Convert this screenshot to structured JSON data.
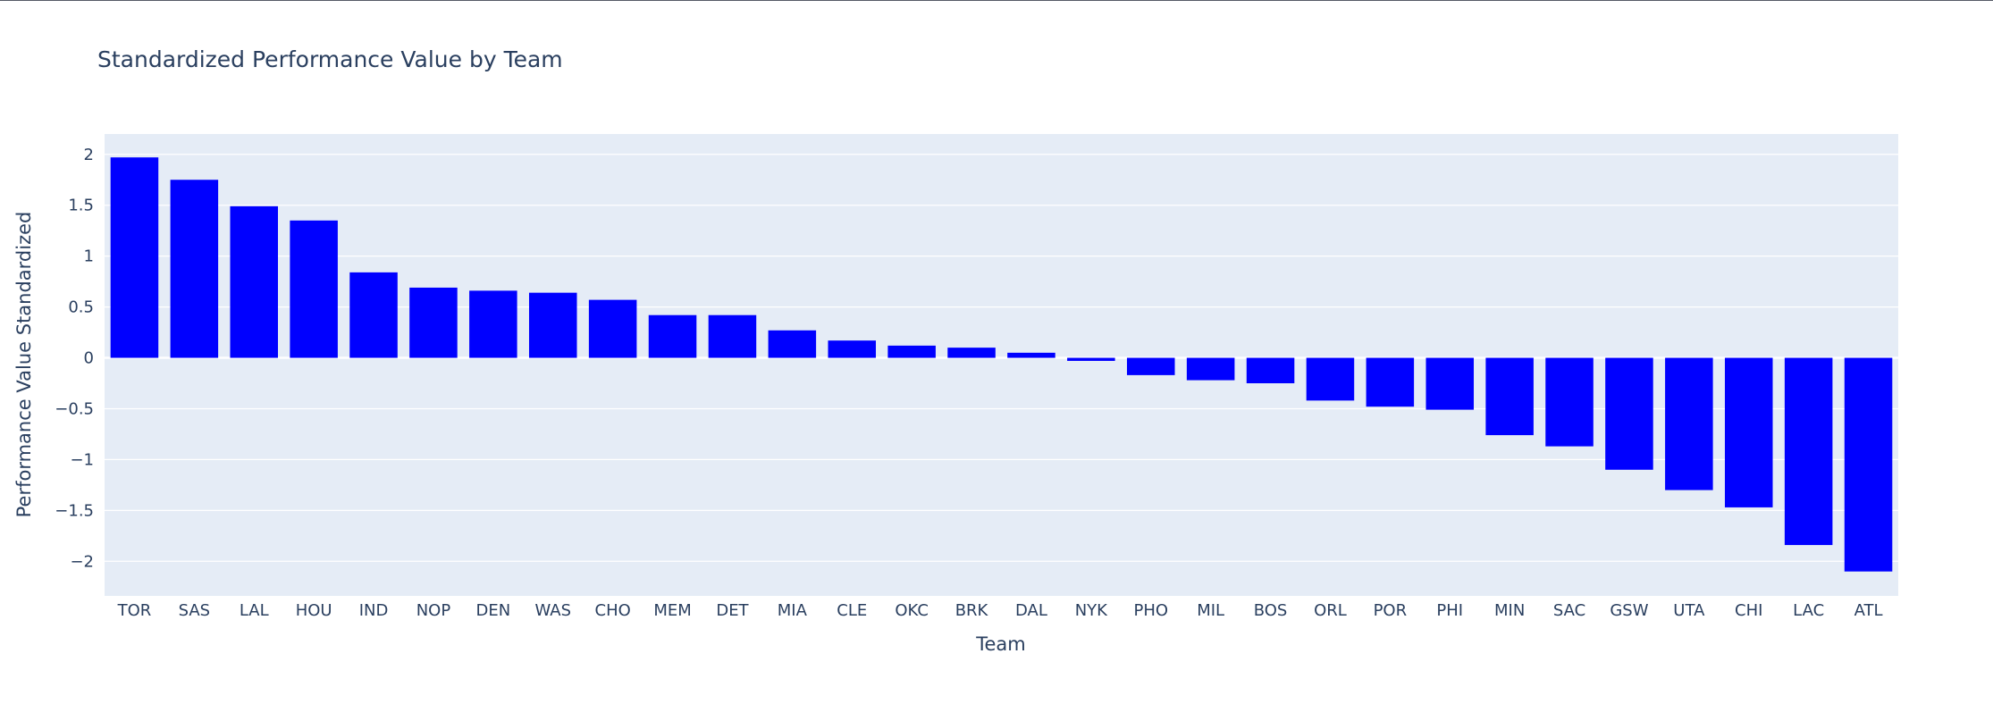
{
  "chart_data": {
    "type": "bar",
    "title": "Standardized Performance Value by Team",
    "xlabel": "Team",
    "ylabel": "Performance Value Standardized",
    "categories": [
      "TOR",
      "SAS",
      "LAL",
      "HOU",
      "IND",
      "NOP",
      "DEN",
      "WAS",
      "CHO",
      "MEM",
      "DET",
      "MIA",
      "CLE",
      "OKC",
      "BRK",
      "DAL",
      "NYK",
      "PHO",
      "MIL",
      "BOS",
      "ORL",
      "POR",
      "PHI",
      "MIN",
      "SAC",
      "GSW",
      "UTA",
      "CHI",
      "LAC",
      "ATL"
    ],
    "values": [
      1.97,
      1.75,
      1.49,
      1.35,
      0.84,
      0.69,
      0.66,
      0.64,
      0.57,
      0.42,
      0.42,
      0.27,
      0.17,
      0.12,
      0.1,
      0.05,
      -0.03,
      -0.17,
      -0.22,
      -0.25,
      -0.42,
      -0.48,
      -0.51,
      -0.76,
      -0.87,
      -1.1,
      -1.3,
      -1.47,
      -1.84,
      -2.1
    ],
    "ylim": [
      -2.34,
      2.2
    ],
    "yticks": [
      2,
      1.5,
      1,
      0.5,
      0,
      -0.5,
      -1,
      -1.5,
      -2
    ],
    "ytick_labels": [
      "2",
      "1.5",
      "1",
      "0.5",
      "0",
      "−0.5",
      "−1",
      "−1.5",
      "−2"
    ],
    "bar_color": "#0000ff",
    "plot_bg": "#e5ecf6",
    "grid": true,
    "legend": false
  }
}
